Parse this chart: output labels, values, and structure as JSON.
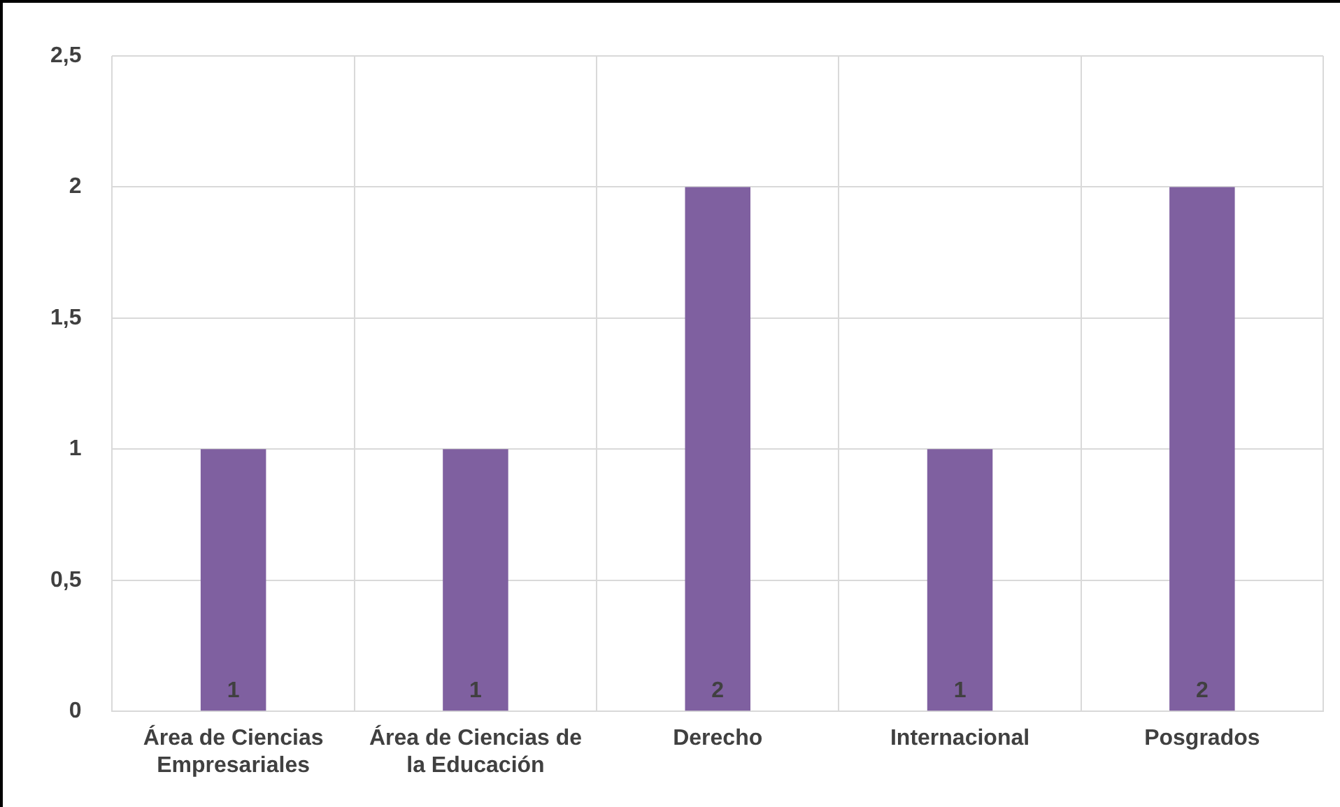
{
  "chart_data": {
    "type": "bar",
    "categories": [
      "Área de Ciencias Empresariales",
      "Área de Ciencias de la Educación",
      "Derecho",
      "Internacional",
      "Posgrados"
    ],
    "values": [
      1,
      1,
      2,
      1,
      2
    ],
    "color": "#7f60a0",
    "ylim": [
      0,
      2.5
    ],
    "yticks": [
      0,
      {
        "value": 0.5,
        "label": "0,5"
      },
      1,
      {
        "value": 1.5,
        "label": "1,5"
      },
      2,
      {
        "value": 2.5,
        "label": "2,5"
      }
    ],
    "grid": true,
    "legend": false,
    "data_labels": true
  }
}
